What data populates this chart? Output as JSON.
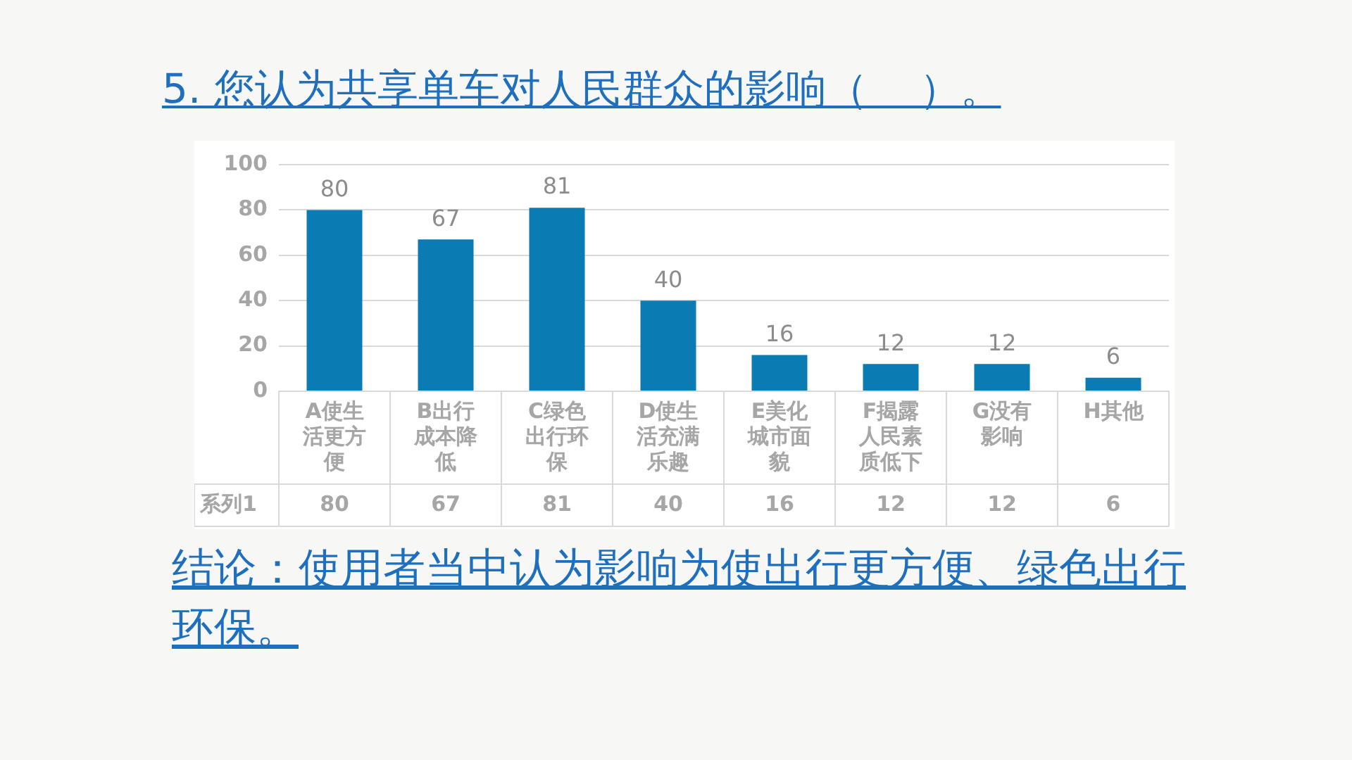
{
  "chart_data": {
    "type": "bar",
    "title": "5. 您认为共享单车对人民群众的影响（    ）。",
    "categories": [
      "A使生活更方便",
      "B出行成本降低",
      "C绿色出行环保",
      "D使生活充满乐趣",
      "E美化城市面貌",
      "F揭露人民素质低下",
      "G没有影响",
      "H其他"
    ],
    "series": [
      {
        "name": "系列1",
        "color": "#0a7bb3",
        "values": [
          80,
          67,
          81,
          40,
          16,
          12,
          12,
          6
        ],
        "value_labels": [
          "80",
          "67",
          "81",
          "40",
          "16",
          "12",
          "12",
          "6"
        ]
      }
    ],
    "ylim": [
      0,
      100
    ],
    "yticks": [
      0,
      20,
      40,
      60,
      80,
      100
    ],
    "grid": "y",
    "data_labels": true,
    "legend": false,
    "annotations": [
      "结论：使用者当中认为影响为使出行更方便、绿色出行环保。"
    ]
  }
}
